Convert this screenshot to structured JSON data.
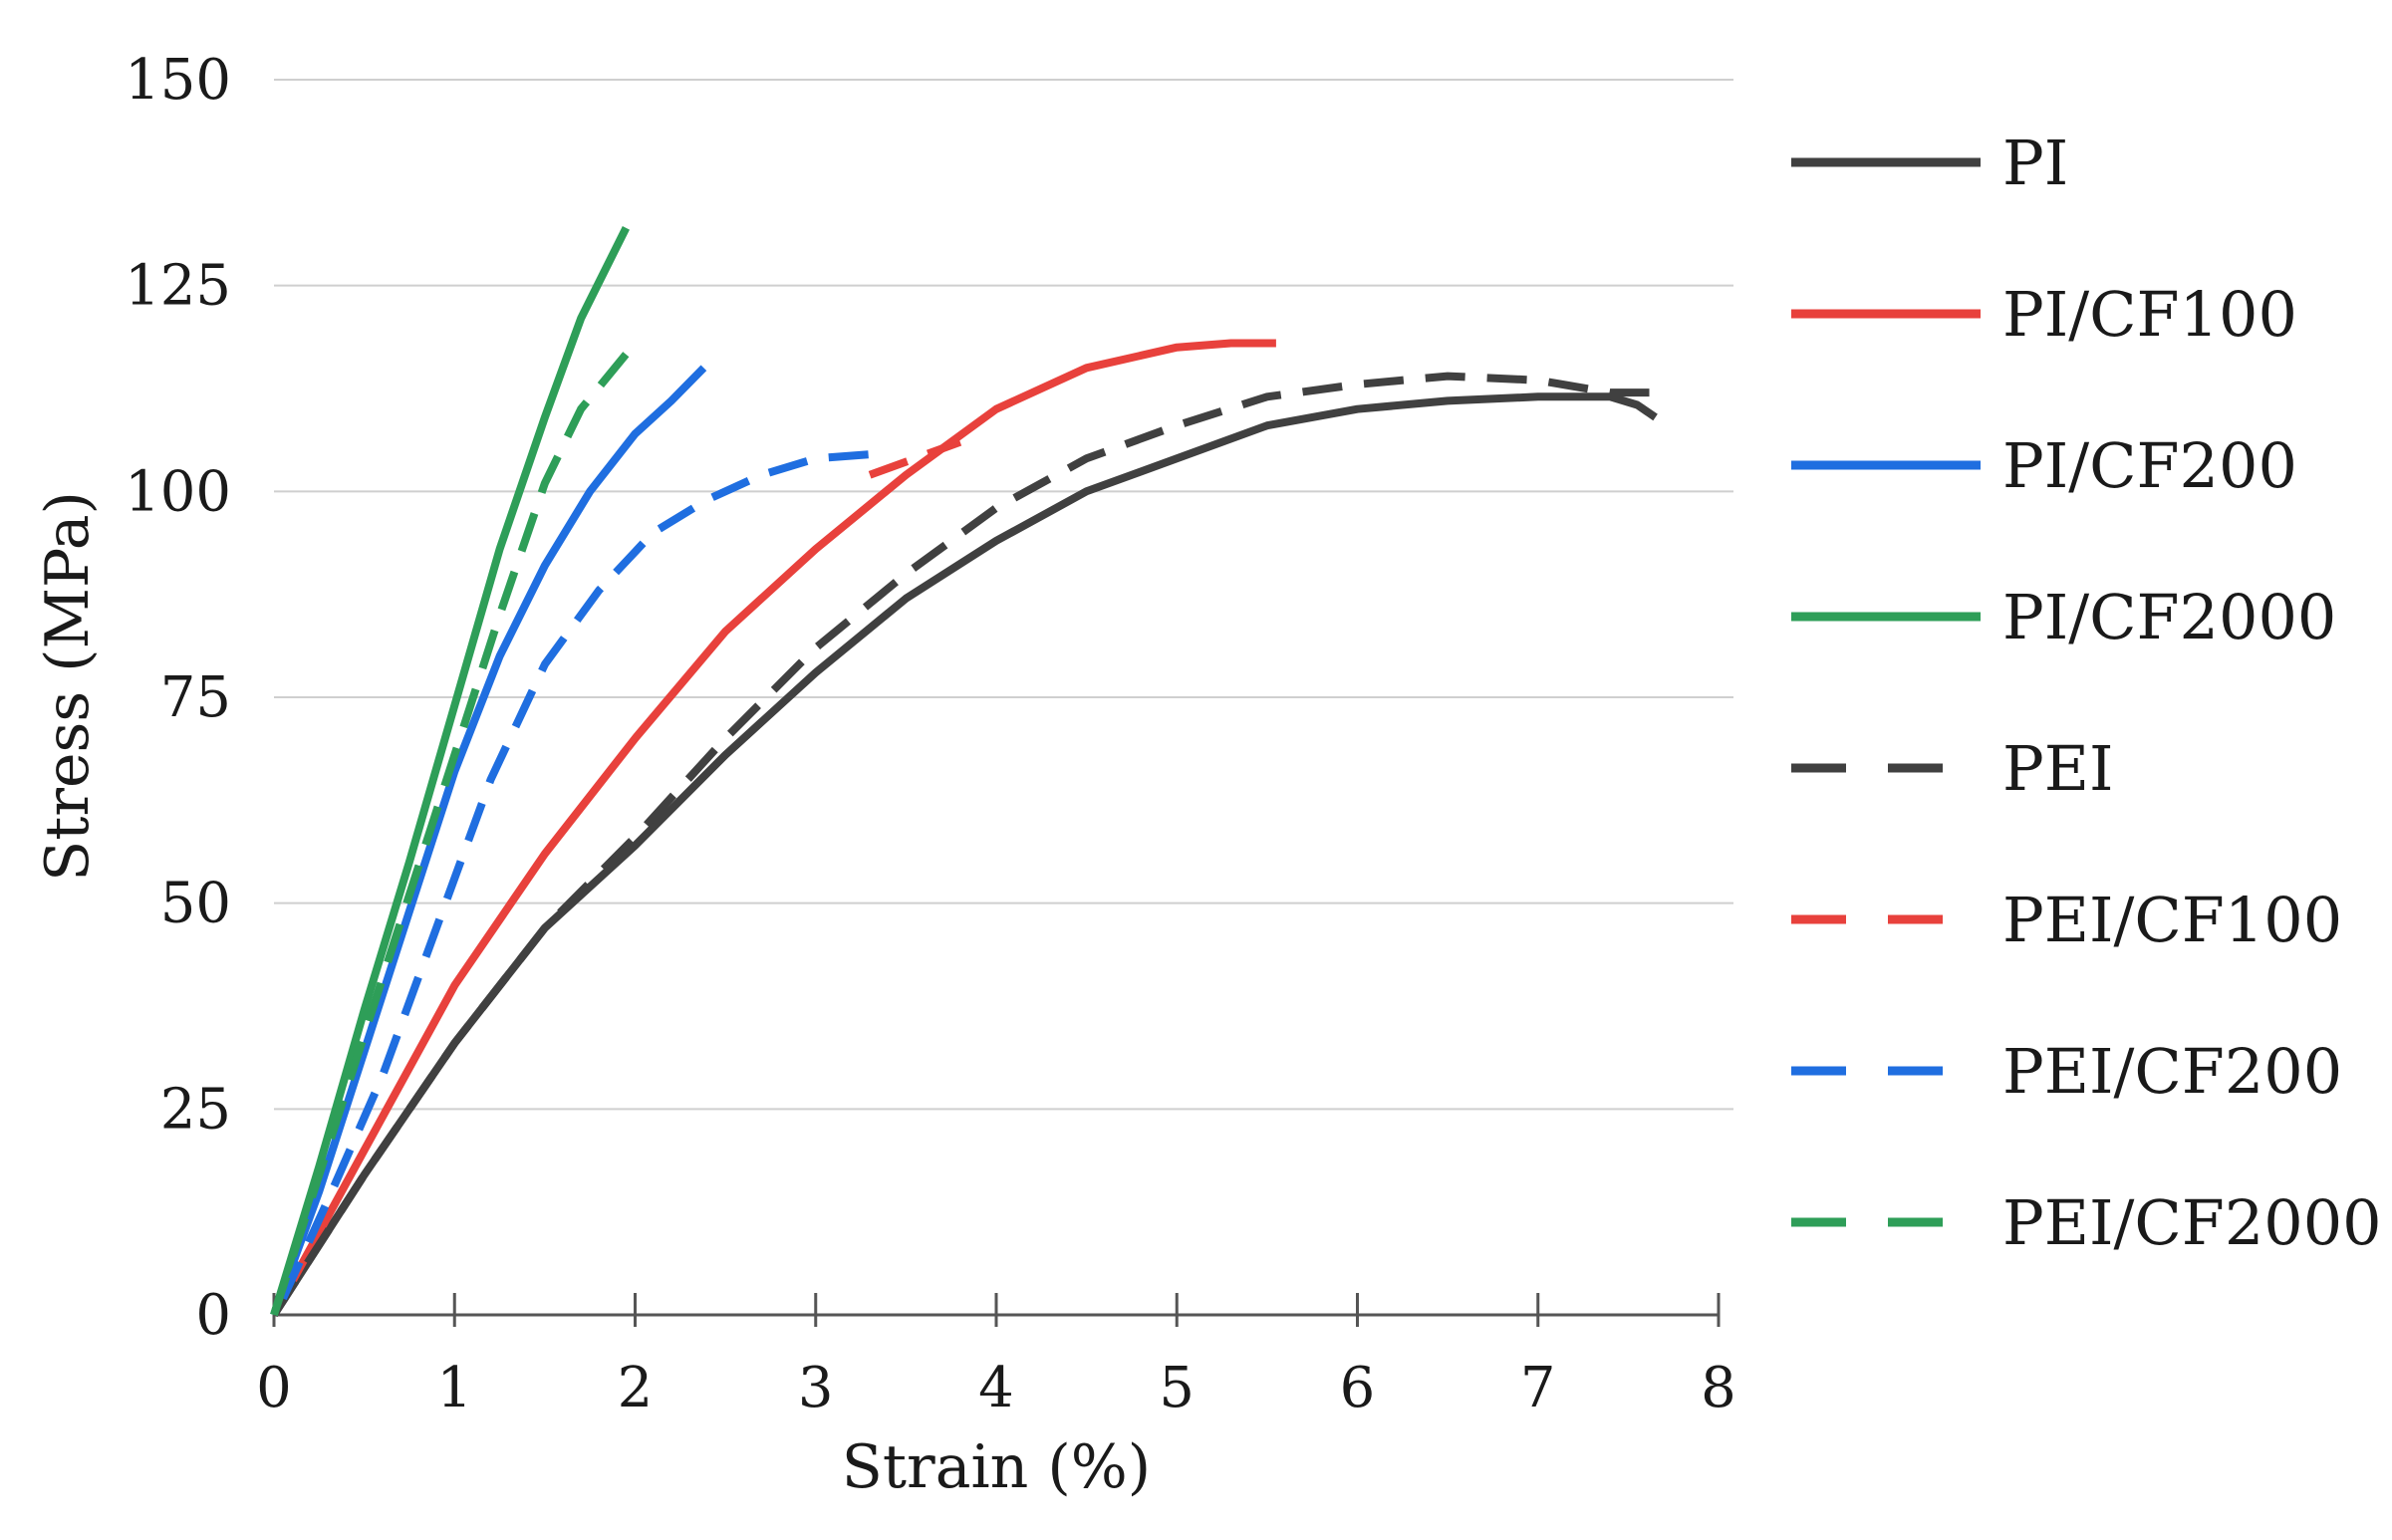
{
  "chart_data": {
    "type": "line",
    "title": "",
    "xlabel": "Strain (%)",
    "ylabel": "Stress (MPa)",
    "xlim": [
      0,
      8
    ],
    "ylim": [
      0,
      150
    ],
    "x_ticks": [
      "0",
      "1",
      "2",
      "3",
      "4",
      "5",
      "6",
      "7",
      "8"
    ],
    "y_ticks": [
      "0",
      "25",
      "50",
      "75",
      "100",
      "125",
      "150"
    ],
    "grid": "horizontal",
    "legend_position": "right",
    "series": [
      {
        "name": "PI",
        "color": "#404040",
        "dash": "solid",
        "x": [
          0,
          0.5,
          1,
          1.5,
          2,
          2.5,
          3,
          3.5,
          4,
          4.5,
          5,
          5.5,
          6,
          6.5,
          7,
          7.4,
          7.55,
          7.65
        ],
        "y": [
          0,
          17,
          33,
          47,
          57,
          68,
          78,
          87,
          94,
          100,
          104,
          108,
          110,
          111,
          111.5,
          111.5,
          110.5,
          109
        ]
      },
      {
        "name": "PI/CF100",
        "color": "#e8413c",
        "dash": "solid",
        "x": [
          0,
          0.5,
          1,
          1.5,
          2,
          2.5,
          3,
          3.5,
          4,
          4.5,
          5,
          5.3,
          5.55
        ],
        "y": [
          0,
          20,
          40,
          56,
          70,
          83,
          93,
          102,
          110,
          115,
          117.5,
          118,
          118
        ]
      },
      {
        "name": "PI/CF200",
        "color": "#1f6ee0",
        "dash": "solid",
        "x": [
          0,
          0.25,
          0.5,
          0.75,
          1,
          1.25,
          1.5,
          1.75,
          2,
          2.2,
          2.38
        ],
        "y": [
          0,
          15,
          32,
          49,
          66,
          80,
          91,
          100,
          107,
          111,
          115
        ]
      },
      {
        "name": "PI/CF2000",
        "color": "#2e9e58",
        "dash": "solid",
        "x": [
          0,
          0.25,
          0.5,
          0.75,
          1,
          1.25,
          1.5,
          1.7,
          1.95
        ],
        "y": [
          0,
          18,
          37,
          55,
          74,
          93,
          109,
          121,
          132
        ]
      },
      {
        "name": "PEI",
        "color": "#404040",
        "dash": "dashed",
        "x": [
          0,
          0.5,
          1,
          1.5,
          2,
          2.5,
          3,
          3.5,
          4,
          4.5,
          5,
          5.5,
          6,
          6.5,
          7,
          7.4,
          7.7
        ],
        "y": [
          0,
          17,
          33,
          47,
          58,
          70,
          81,
          90,
          98,
          104,
          108,
          111.5,
          113,
          114,
          113.5,
          112,
          112
        ]
      },
      {
        "name": "PEI/CF100",
        "color": "#e8413c",
        "dash": "dashed",
        "x": [
          3.3,
          3.55,
          3.8
        ],
        "y": [
          102,
          104,
          106
        ]
      },
      {
        "name": "PEI/CF200",
        "color": "#1f6ee0",
        "dash": "dashed",
        "x": [
          0.05,
          0.3,
          0.6,
          0.9,
          1.2,
          1.5,
          1.8,
          2.1,
          2.4,
          2.7,
          3.0,
          3.3
        ],
        "y": [
          2,
          14,
          29,
          47,
          65,
          79,
          88,
          95,
          99,
          102,
          104,
          104.5
        ]
      },
      {
        "name": "PEI/CF2000",
        "color": "#2e9e58",
        "dash": "dashed",
        "x": [
          0,
          0.25,
          0.5,
          0.75,
          1,
          1.25,
          1.5,
          1.7,
          2.0
        ],
        "y": [
          0,
          17,
          34,
          51,
          68,
          85,
          101,
          110,
          118
        ]
      }
    ]
  }
}
